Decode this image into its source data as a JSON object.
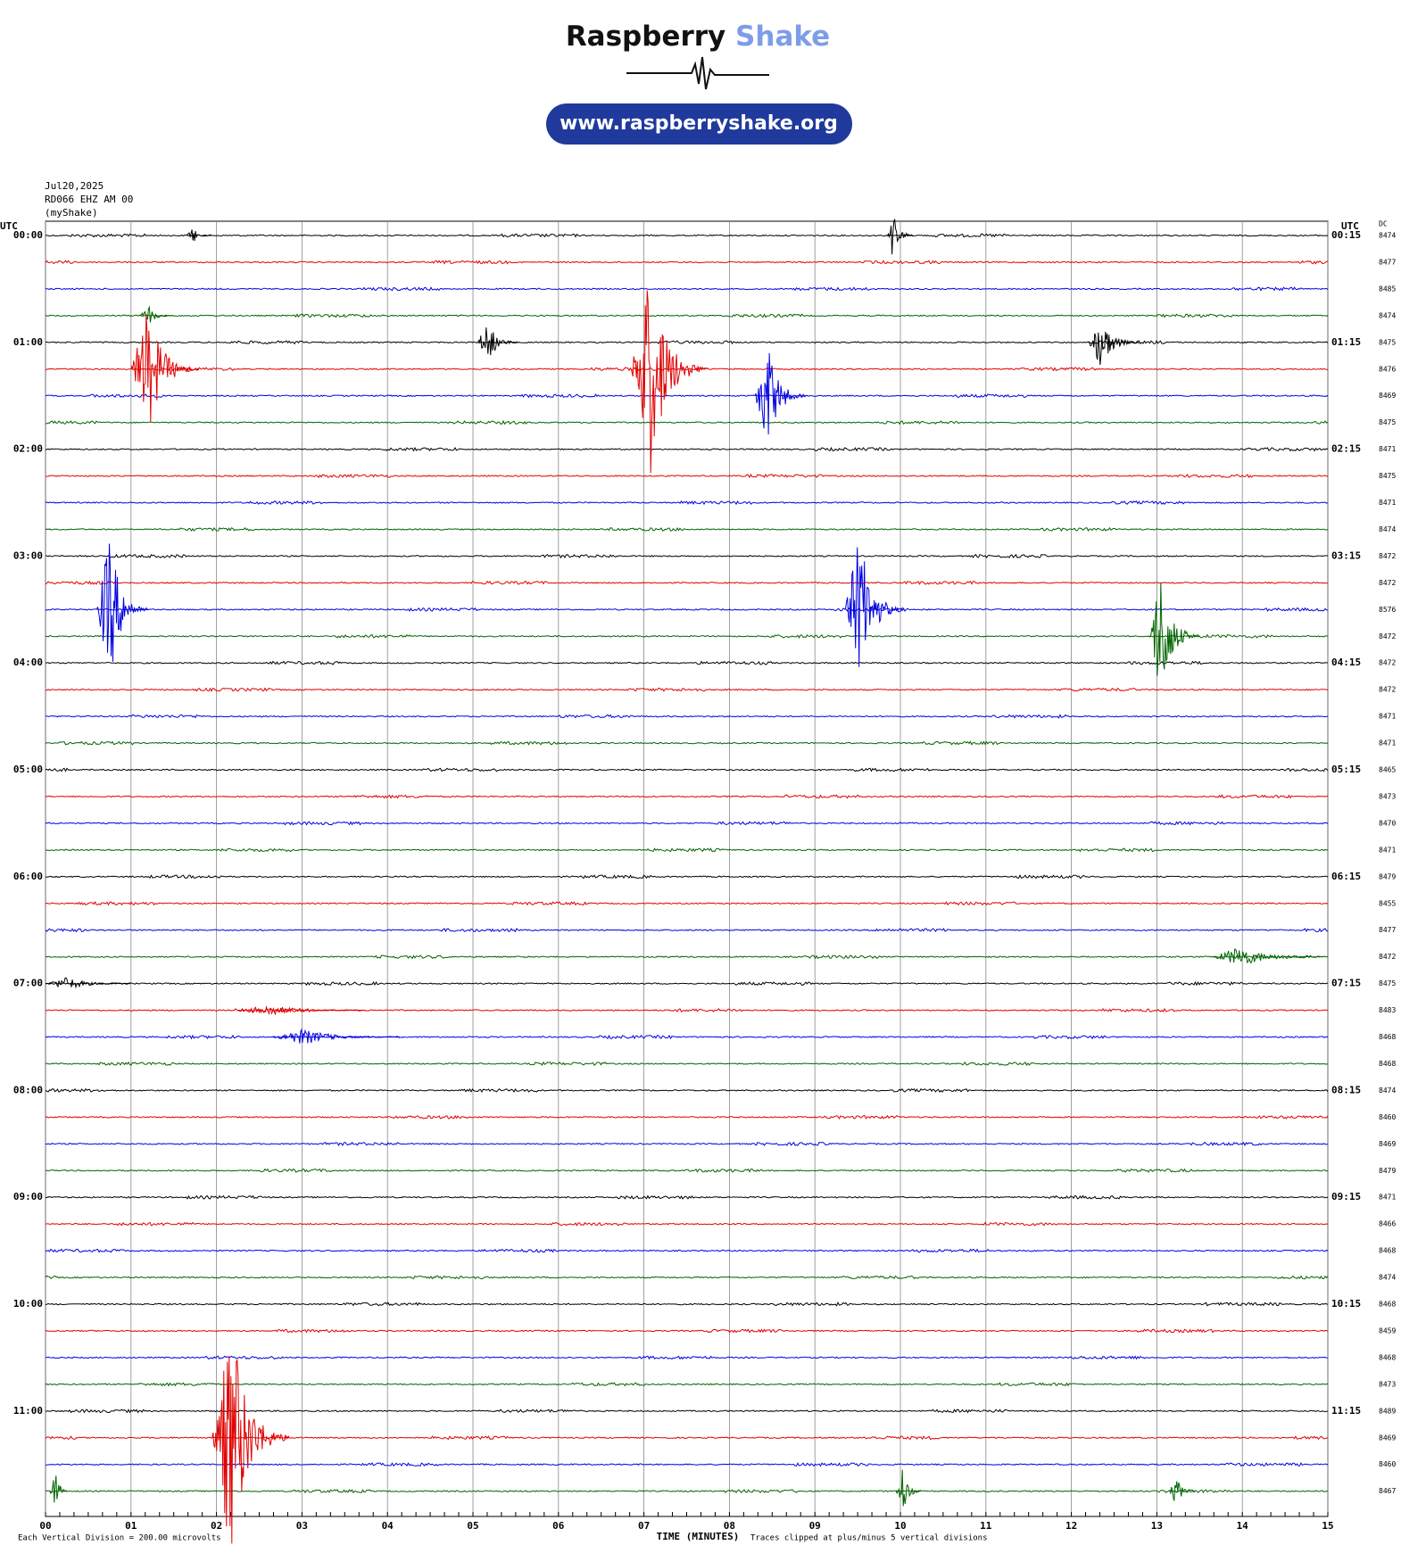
{
  "chart_data": {
    "type": "helicorder",
    "brand": [
      "Raspberry",
      "Shake"
    ],
    "website": "www.raspberryshake.org",
    "date": "Jul20,2025",
    "station": "RD066 EHZ AM 00",
    "source": "(myShake)",
    "left_header": "UTC",
    "right_header": "UTC",
    "dc_header": "DC",
    "colors": [
      "#000000",
      "#e00000",
      "#0000e0",
      "#006400"
    ],
    "left_labels": [
      "00:00",
      null,
      null,
      null,
      "01:00",
      null,
      null,
      null,
      "02:00",
      null,
      null,
      null,
      "03:00",
      null,
      null,
      null,
      "04:00",
      null,
      null,
      null,
      "05:00",
      null,
      null,
      null,
      "06:00",
      null,
      null,
      null,
      "07:00",
      null,
      null,
      null,
      "08:00",
      null,
      null,
      null,
      "09:00",
      null,
      null,
      null,
      "10:00",
      null,
      null,
      null,
      "11:00",
      null,
      null,
      null
    ],
    "right_labels": [
      "00:15",
      null,
      null,
      null,
      "01:15",
      null,
      null,
      null,
      "02:15",
      null,
      null,
      null,
      "03:15",
      null,
      null,
      null,
      "04:15",
      null,
      null,
      null,
      "05:15",
      null,
      null,
      null,
      "06:15",
      null,
      null,
      null,
      "07:15",
      null,
      null,
      null,
      "08:15",
      null,
      null,
      null,
      "09:15",
      null,
      null,
      null,
      "10:15",
      null,
      null,
      null,
      "11:15",
      null,
      null,
      null
    ],
    "dc": [
      8474,
      8477,
      8485,
      8474,
      8475,
      8476,
      8469,
      8475,
      8471,
      8475,
      8471,
      8474,
      8472,
      8472,
      8576,
      8472,
      8472,
      8472,
      8471,
      8471,
      8465,
      8473,
      8470,
      8471,
      8479,
      8455,
      8477,
      8472,
      8475,
      8483,
      8468,
      8468,
      8474,
      8460,
      8469,
      8479,
      8471,
      8466,
      8468,
      8474,
      8468,
      8459,
      8468,
      8473,
      8489,
      8469,
      8460,
      8467
    ],
    "xlim": [
      0,
      15
    ],
    "xticks": [
      {
        "value": 0,
        "label": "00"
      },
      {
        "value": 1,
        "label": "01"
      },
      {
        "value": 2,
        "label": "02"
      },
      {
        "value": 3,
        "label": "03"
      },
      {
        "value": 4,
        "label": "04"
      },
      {
        "value": 5,
        "label": "05"
      },
      {
        "value": 6,
        "label": "06"
      },
      {
        "value": 7,
        "label": "07"
      },
      {
        "value": 8,
        "label": "08"
      },
      {
        "value": 9,
        "label": "09"
      },
      {
        "value": 10,
        "label": "10"
      },
      {
        "value": 11,
        "label": "11"
      },
      {
        "value": 12,
        "label": "12"
      },
      {
        "value": 13,
        "label": "13"
      },
      {
        "value": 14,
        "label": "14"
      },
      {
        "value": 15,
        "label": "15"
      }
    ],
    "xlabel": "TIME (MINUTES)",
    "scale_note": "Each Vertical Division =  200.00 microvolts",
    "clip_note": "Traces clipped at plus/minus 5 vertical divisions",
    "events": [
      {
        "row": 0,
        "minute": 10.0,
        "amplitude": 1.1,
        "duration": 0.3
      },
      {
        "row": 0,
        "minute": 1.8,
        "amplitude": 0.3,
        "duration": 0.3
      },
      {
        "row": 3,
        "minute": 1.3,
        "amplitude": 0.4,
        "duration": 0.4
      },
      {
        "row": 4,
        "minute": 5.3,
        "amplitude": 0.8,
        "duration": 0.5
      },
      {
        "row": 4,
        "minute": 12.5,
        "amplitude": 1.0,
        "duration": 0.6
      },
      {
        "row": 5,
        "minute": 1.4,
        "amplitude": 2.4,
        "duration": 0.8
      },
      {
        "row": 5,
        "minute": 7.3,
        "amplitude": 4.0,
        "duration": 0.9
      },
      {
        "row": 6,
        "minute": 8.6,
        "amplitude": 2.0,
        "duration": 0.6
      },
      {
        "row": 14,
        "minute": 0.9,
        "amplitude": 2.8,
        "duration": 0.6
      },
      {
        "row": 14,
        "minute": 9.7,
        "amplitude": 2.8,
        "duration": 0.7
      },
      {
        "row": 15,
        "minute": 13.2,
        "amplitude": 2.5,
        "duration": 0.6
      },
      {
        "row": 27,
        "minute": 14.3,
        "amplitude": 0.4,
        "duration": 1.3
      },
      {
        "row": 28,
        "minute": 0.5,
        "amplitude": 0.25,
        "duration": 1.0
      },
      {
        "row": 29,
        "minute": 3.0,
        "amplitude": 0.2,
        "duration": 1.5
      },
      {
        "row": 30,
        "minute": 3.4,
        "amplitude": 0.3,
        "duration": 1.5
      },
      {
        "row": 45,
        "minute": 2.4,
        "amplitude": 4.5,
        "duration": 0.9
      },
      {
        "row": 47,
        "minute": 0.15,
        "amplitude": 1.5,
        "duration": 0.2
      },
      {
        "row": 47,
        "minute": 10.1,
        "amplitude": 1.0,
        "duration": 0.3
      },
      {
        "row": 47,
        "minute": 13.3,
        "amplitude": 0.6,
        "duration": 0.3
      }
    ]
  }
}
